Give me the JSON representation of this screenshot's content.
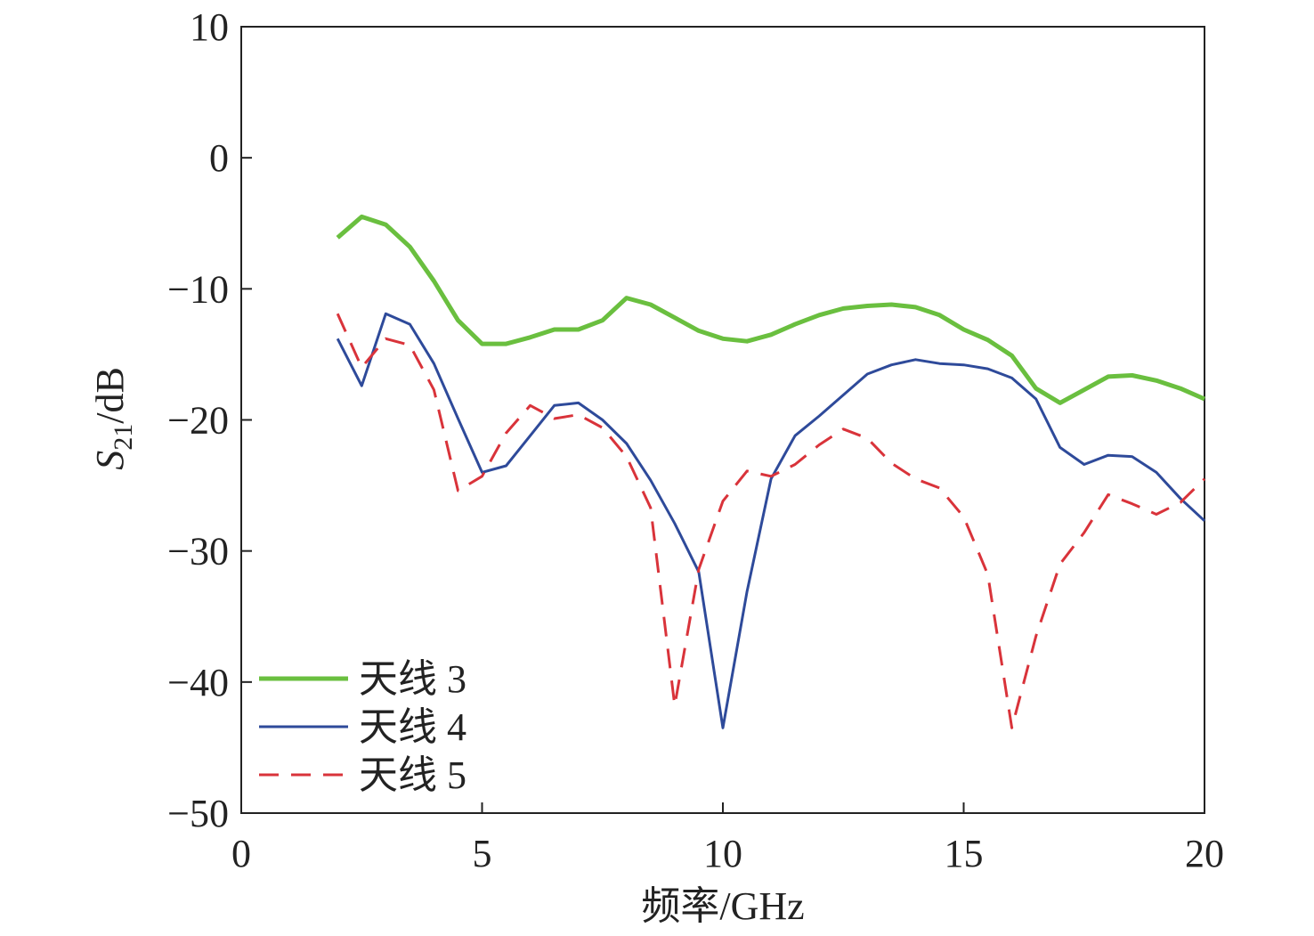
{
  "chart_data": {
    "type": "line",
    "ylabel": [
      "S",
      "21",
      "/dB"
    ],
    "xlabel": "频率/GHz",
    "x": [
      2,
      2.5,
      3,
      3.5,
      4,
      4.5,
      5,
      5.5,
      6,
      6.5,
      7,
      7.5,
      8,
      8.5,
      9,
      9.5,
      10,
      10.5,
      11,
      11.5,
      12,
      12.5,
      13,
      13.5,
      14,
      14.5,
      15,
      15.5,
      16,
      16.5,
      17,
      17.5,
      18,
      18.5,
      19,
      19.5,
      20
    ],
    "series": [
      {
        "name": "天线 3",
        "color": "#6abf3f",
        "width": 5,
        "dash": false,
        "values": [
          -6.1,
          -4.5,
          -5.1,
          -6.8,
          -9.4,
          -12.4,
          -14.2,
          -14.2,
          -13.7,
          -13.1,
          -13.1,
          -12.4,
          -10.7,
          -11.2,
          -12.2,
          -13.2,
          -13.8,
          -14.0,
          -13.5,
          -12.7,
          -12.0,
          -11.5,
          -11.3,
          -11.2,
          -11.4,
          -12.0,
          -13.1,
          -13.9,
          -15.1,
          -17.6,
          -18.7,
          -17.7,
          -16.7,
          -16.6,
          -17.0,
          -17.6,
          -18.4
        ]
      },
      {
        "name": "天线 4",
        "color": "#2e4a9a",
        "width": 3,
        "dash": false,
        "values": [
          -13.8,
          -17.4,
          -11.9,
          -12.7,
          -15.7,
          -19.9,
          -24.0,
          -23.5,
          -21.2,
          -18.9,
          -18.7,
          -20.0,
          -21.8,
          -24.6,
          -27.9,
          -31.6,
          -43.5,
          -33.1,
          -24.5,
          -21.2,
          -19.7,
          -18.1,
          -16.5,
          -15.8,
          -15.4,
          -15.7,
          -15.8,
          -16.1,
          -16.8,
          -18.4,
          -22.1,
          -23.4,
          -22.7,
          -22.8,
          -24.0,
          -26.0,
          -27.7
        ]
      },
      {
        "name": "天线 5",
        "color": "#d9333a",
        "width": 3,
        "dash": true,
        "values": [
          -11.9,
          -16.0,
          -13.8,
          -14.3,
          -17.7,
          -25.4,
          -24.3,
          -21.0,
          -18.9,
          -19.9,
          -19.6,
          -20.6,
          -22.8,
          -26.7,
          -41.8,
          -31.4,
          -26.2,
          -23.9,
          -24.3,
          -23.4,
          -21.9,
          -20.7,
          -21.4,
          -23.3,
          -24.5,
          -25.2,
          -27.4,
          -31.8,
          -43.5,
          -36.5,
          -31.0,
          -28.6,
          -25.7,
          -26.4,
          -27.2,
          -26.3,
          -24.5
        ]
      }
    ],
    "xlim": [
      0,
      20
    ],
    "xticks": [
      0,
      5,
      10,
      15,
      20
    ],
    "ylim": [
      -50,
      10
    ],
    "yticks": [
      {
        "value": -50,
        "label": "−50"
      },
      {
        "value": -40,
        "label": "−40"
      },
      {
        "value": -30,
        "label": "−30"
      },
      {
        "value": -20,
        "label": "−20"
      },
      {
        "value": -10,
        "label": "−10"
      },
      0,
      10
    ],
    "legend": "lower left",
    "grid": false
  }
}
